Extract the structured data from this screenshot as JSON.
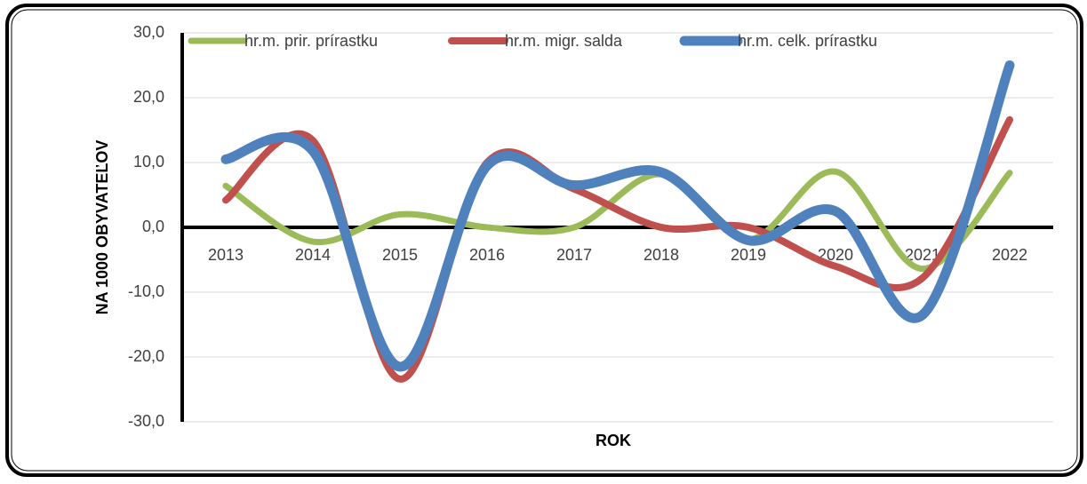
{
  "chart_data": {
    "type": "line",
    "categories": [
      "2013",
      "2014",
      "2015",
      "2016",
      "2017",
      "2018",
      "2019",
      "2020",
      "2021",
      "2022"
    ],
    "series": [
      {
        "name": "hr.m. prir. prírastku",
        "color": "#9bbb59",
        "values": [
          6.4,
          -2.2,
          2.0,
          0.0,
          0.0,
          8.2,
          -1.9,
          8.6,
          -6.4,
          8.4
        ]
      },
      {
        "name": "hr.m. migr. salda",
        "color": "#c0504d",
        "values": [
          4.2,
          13.4,
          -23.4,
          10.0,
          5.9,
          0.0,
          0.0,
          -6.0,
          -7.8,
          16.6
        ]
      },
      {
        "name": "hr.m. celk. prírastku",
        "color": "#4f81bd",
        "values": [
          10.5,
          11.8,
          -21.5,
          9.5,
          6.5,
          8.5,
          -2.0,
          2.5,
          -13.5,
          25.0
        ]
      }
    ],
    "xlabel": "ROK",
    "ylabel": "NA 1000 OBYVATEĽOV",
    "ylim": [
      -30,
      30
    ],
    "yticks": [
      {
        "value": -30,
        "label": "-30,0"
      },
      {
        "value": -20,
        "label": "-20,0"
      },
      {
        "value": -10,
        "label": "-10,0"
      },
      {
        "value": 0,
        "label": "0,0"
      },
      {
        "value": 10,
        "label": "10,0"
      },
      {
        "value": 20,
        "label": "20,0"
      },
      {
        "value": 30,
        "label": "30,0"
      }
    ],
    "grid": true,
    "legend": "top"
  }
}
